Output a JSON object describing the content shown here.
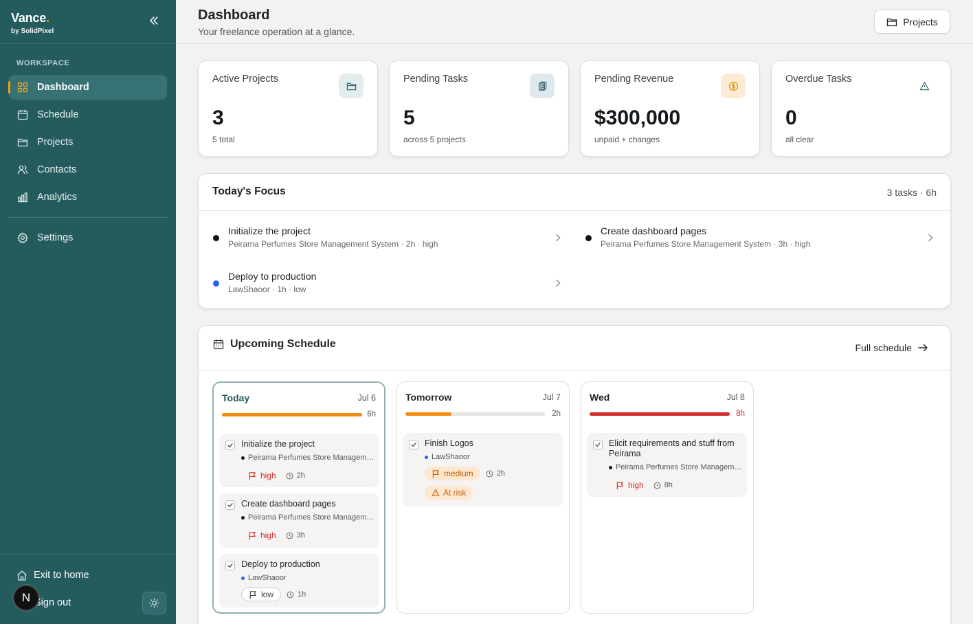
{
  "brand": {
    "name": "Vance",
    "dot": ".",
    "sub": "by SolidPixel"
  },
  "sidebar": {
    "section": "WORKSPACE",
    "items": [
      {
        "label": "Dashboard",
        "icon": "grid-icon"
      },
      {
        "label": "Schedule",
        "icon": "calendar-icon"
      },
      {
        "label": "Projects",
        "icon": "folder-icon"
      },
      {
        "label": "Contacts",
        "icon": "users-icon"
      },
      {
        "label": "Analytics",
        "icon": "bar-chart-icon"
      }
    ],
    "settings": "Settings",
    "exit": "Exit to home",
    "signout": "Sign out",
    "avatar": "N"
  },
  "header": {
    "title": "Dashboard",
    "subtitle": "Your freelance operation at a glance.",
    "projects_btn": "Projects"
  },
  "stats": [
    {
      "label": "Active Projects",
      "value": "3",
      "note": "5 total",
      "icon": "folder-icon"
    },
    {
      "label": "Pending Tasks",
      "value": "5",
      "note": "across 5 projects",
      "icon": "clipboard-icon"
    },
    {
      "label": "Pending Revenue",
      "value": "$300,000",
      "note": "unpaid + changes",
      "icon": "coin-icon"
    },
    {
      "label": "Overdue Tasks",
      "value": "0",
      "note": "all clear",
      "icon": "alert-triangle-icon"
    }
  ],
  "focus": {
    "title": "Today's Focus",
    "meta": "3 tasks · 6h",
    "items": [
      {
        "name": "Initialize the project",
        "sub": "Peirama Perfumes Store Management System · 2h · high",
        "dot_color": "#111111"
      },
      {
        "name": "Create dashboard pages",
        "sub": "Peirama Perfumes Store Management System · 3h · high",
        "dot_color": "#111111"
      },
      {
        "name": "Deploy to production",
        "sub": "LawShaoor · 1h · low",
        "dot_color": "#2563eb"
      }
    ]
  },
  "schedule": {
    "title": "Upcoming Schedule",
    "full_link": "Full schedule",
    "days": [
      {
        "name": "Today",
        "date": "Jul 6",
        "hours": "6h",
        "load": 1.0,
        "bar_color": "#f28c0f",
        "tasks": [
          {
            "name": "Initialize the project",
            "project": "Peirama Perfumes Store Management System",
            "project_color": "#111111",
            "priority": "high",
            "hours": "2h"
          },
          {
            "name": "Create dashboard pages",
            "project": "Peirama Perfumes Store Management System",
            "project_color": "#111111",
            "priority": "high",
            "hours": "3h"
          },
          {
            "name": "Deploy to production",
            "project": "LawShaoor",
            "project_color": "#2563eb",
            "priority": "low",
            "hours": "1h"
          }
        ]
      },
      {
        "name": "Tomorrow",
        "date": "Jul 7",
        "hours": "2h",
        "load": 0.33,
        "bar_color": "#f28c0f",
        "tasks": [
          {
            "name": "Finish Logos",
            "project": "LawShaoor",
            "project_color": "#2563eb",
            "priority": "medium",
            "hours": "2h",
            "risk": "At risk"
          }
        ]
      },
      {
        "name": "Wed",
        "date": "Jul 8",
        "hours": "8h",
        "load": 1.0,
        "bar_color": "#d42c2c",
        "hours_color": "#d42c2c",
        "tasks": [
          {
            "name": "Elicit requirements and stuff from Peirama",
            "project": "Peirama Perfumes Store Management System",
            "project_color": "#111111",
            "priority": "high",
            "hours": "8h"
          }
        ]
      }
    ]
  },
  "colors": {
    "sidebar": "#245c5e",
    "accent": "#f59e0b",
    "high": "#d42c2c",
    "medium": "#c05f0a"
  }
}
